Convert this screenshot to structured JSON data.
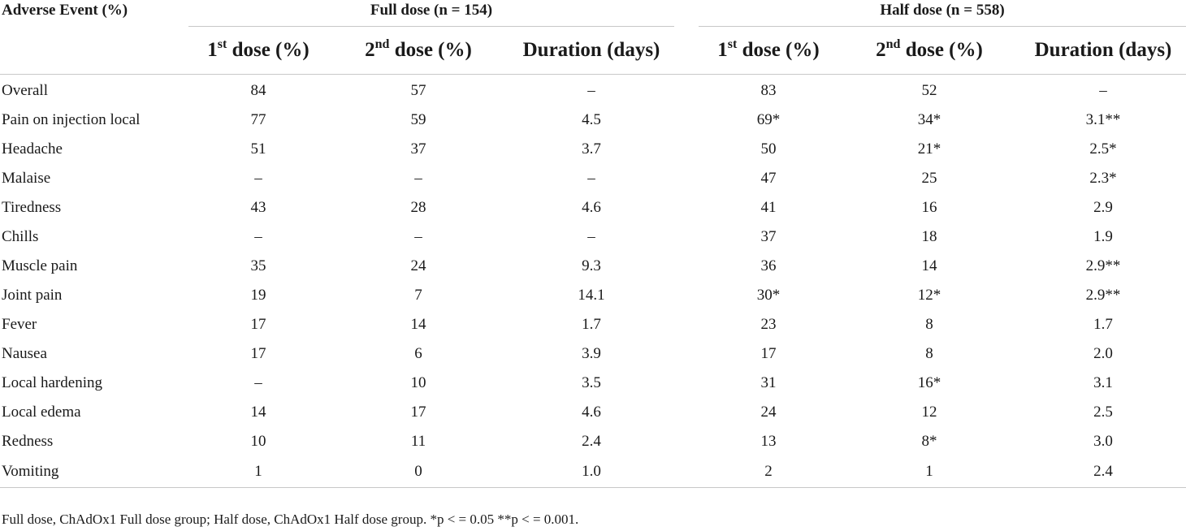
{
  "table": {
    "label_header": "Adverse Event (%)",
    "groups": [
      {
        "title": "Full dose (n = 154)"
      },
      {
        "title": "Half dose (n = 558)"
      }
    ],
    "subheaders": [
      {
        "base": "1",
        "sup": "st",
        "rest": " dose (%)"
      },
      {
        "base": "2",
        "sup": "nd",
        "rest": " dose (%)"
      },
      {
        "base": "Duration (days)",
        "sup": "",
        "rest": ""
      },
      {
        "base": "1",
        "sup": "st",
        "rest": " dose (%)"
      },
      {
        "base": "2",
        "sup": "nd",
        "rest": " dose (%)"
      },
      {
        "base": "Duration (days)",
        "sup": "",
        "rest": ""
      }
    ],
    "rows": [
      {
        "label": "Overall",
        "values": [
          "84",
          "57",
          "–",
          "83",
          "52",
          "–"
        ]
      },
      {
        "label": "Pain on injection local",
        "values": [
          "77",
          "59",
          "4.5",
          "69*",
          "34*",
          "3.1**"
        ]
      },
      {
        "label": "Headache",
        "values": [
          "51",
          "37",
          "3.7",
          "50",
          "21*",
          "2.5*"
        ]
      },
      {
        "label": "Malaise",
        "values": [
          "–",
          "–",
          "–",
          "47",
          "25",
          "2.3*"
        ]
      },
      {
        "label": "Tiredness",
        "values": [
          "43",
          "28",
          "4.6",
          "41",
          "16",
          "2.9"
        ]
      },
      {
        "label": "Chills",
        "values": [
          "–",
          "–",
          "–",
          "37",
          "18",
          "1.9"
        ]
      },
      {
        "label": "Muscle pain",
        "values": [
          "35",
          "24",
          "9.3",
          "36",
          "14",
          "2.9**"
        ]
      },
      {
        "label": "Joint pain",
        "values": [
          "19",
          "7",
          "14.1",
          "30*",
          "12*",
          "2.9**"
        ]
      },
      {
        "label": "Fever",
        "values": [
          "17",
          "14",
          "1.7",
          "23",
          "8",
          "1.7"
        ]
      },
      {
        "label": "Nausea",
        "values": [
          "17",
          "6",
          "3.9",
          "17",
          "8",
          "2.0"
        ]
      },
      {
        "label": "Local hardening",
        "values": [
          "–",
          "10",
          "3.5",
          "31",
          "16*",
          "3.1"
        ]
      },
      {
        "label": "Local edema",
        "values": [
          "14",
          "17",
          "4.6",
          "24",
          "12",
          "2.5"
        ]
      },
      {
        "label": "Redness",
        "values": [
          "10",
          "11",
          "2.4",
          "13",
          "8*",
          "3.0"
        ]
      },
      {
        "label": "Vomiting",
        "values": [
          "1",
          "0",
          "1.0",
          "2",
          "1",
          "2.4"
        ]
      }
    ]
  },
  "footnote": "Full dose, ChAdOx1 Full dose group; Half dose, ChAdOx1 Half dose group. *p < = 0.05 **p < = 0.001."
}
